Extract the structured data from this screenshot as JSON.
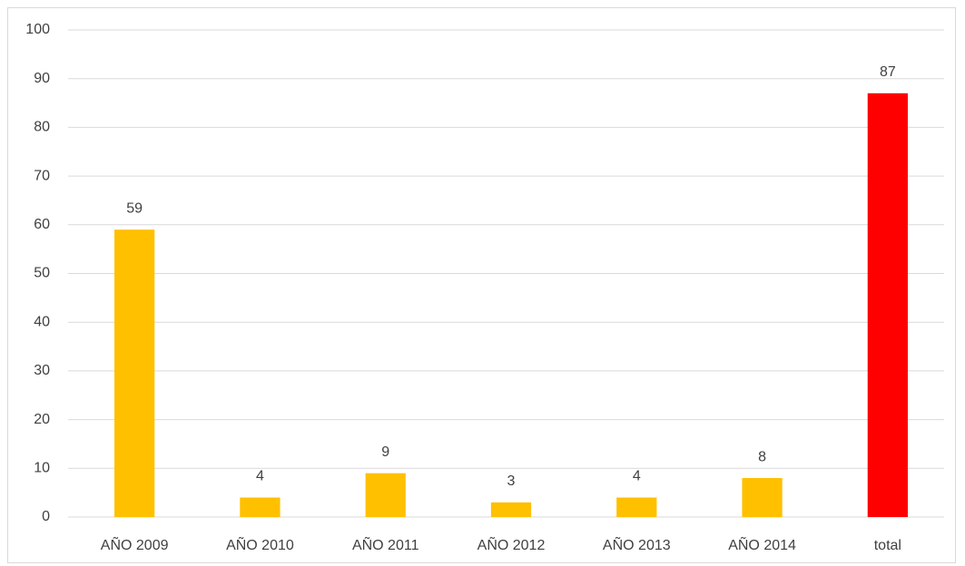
{
  "chart_data": {
    "type": "bar",
    "categories": [
      "AÑO 2009",
      "AÑO 2010",
      "AÑO 2011",
      "AÑO 2012",
      "AÑO 2013",
      "AÑO 2014",
      "total"
    ],
    "values": [
      59,
      4,
      9,
      3,
      4,
      8,
      87
    ],
    "colors": [
      "#ffc000",
      "#ffc000",
      "#ffc000",
      "#ffc000",
      "#ffc000",
      "#ffc000",
      "#ff0000"
    ],
    "ylim": [
      0,
      100
    ],
    "yticks": [
      0,
      10,
      20,
      30,
      40,
      50,
      60,
      70,
      80,
      90,
      100
    ],
    "grid": true
  }
}
